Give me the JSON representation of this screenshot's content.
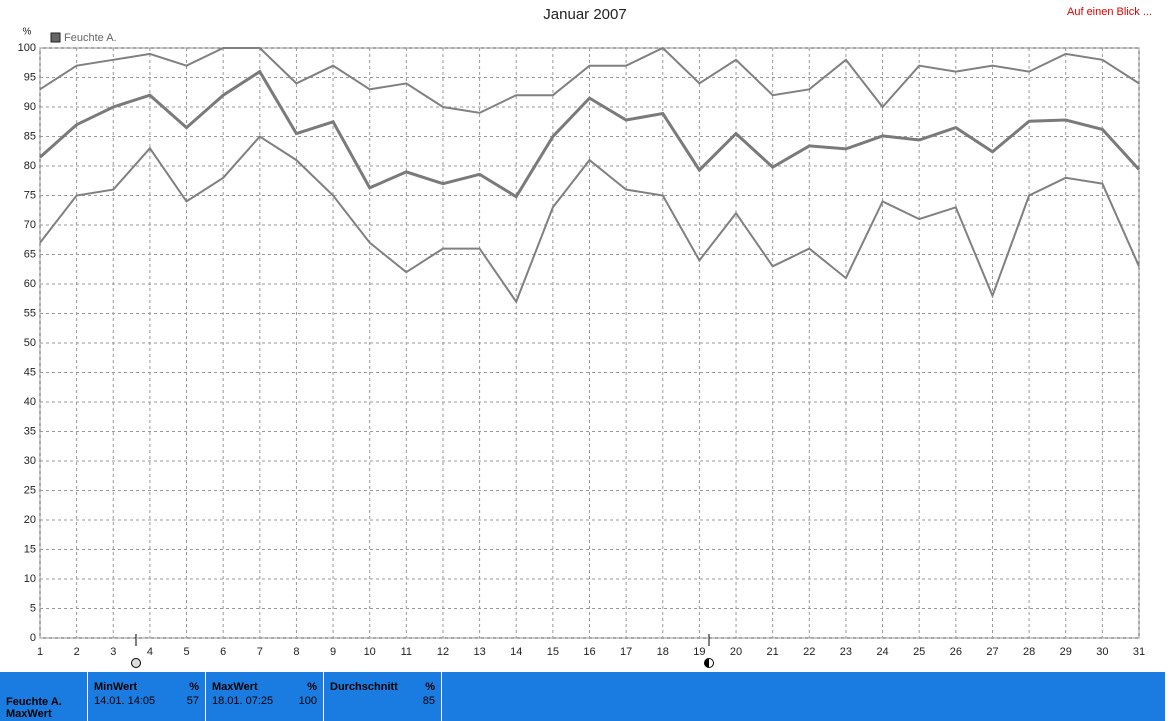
{
  "chart_data": {
    "type": "line",
    "title": "Januar 2007",
    "y_unit": "%",
    "legend": "Feuchte A.",
    "link": "Auf einen Blick ...",
    "x": [
      1,
      2,
      3,
      4,
      5,
      6,
      7,
      8,
      9,
      10,
      11,
      12,
      13,
      14,
      15,
      16,
      17,
      18,
      19,
      20,
      21,
      22,
      23,
      24,
      25,
      26,
      27,
      28,
      29,
      30,
      31
    ],
    "xlim": [
      1,
      31
    ],
    "xticks": [
      1,
      2,
      3,
      4,
      5,
      6,
      7,
      8,
      9,
      10,
      11,
      12,
      13,
      14,
      15,
      16,
      17,
      18,
      19,
      20,
      21,
      22,
      23,
      24,
      25,
      26,
      27,
      28,
      29,
      30,
      31
    ],
    "ylim": [
      0,
      100
    ],
    "yticks": [
      0,
      5,
      10,
      15,
      20,
      25,
      30,
      35,
      40,
      45,
      50,
      55,
      60,
      65,
      70,
      75,
      80,
      85,
      90,
      95,
      100
    ],
    "grid": true,
    "series": [
      {
        "color": "#808080",
        "values": [
          93,
          97,
          98,
          99,
          97,
          100,
          100,
          94,
          97,
          93,
          94,
          90,
          89,
          92,
          92,
          97,
          97,
          100,
          94,
          98,
          92,
          93,
          98,
          90,
          97,
          96,
          97,
          96,
          99,
          98,
          94
        ]
      },
      {
        "color": "#7a7a7a",
        "values": [
          81.5,
          87,
          90,
          92,
          86.5,
          92,
          96,
          85.5,
          87.5,
          76.3,
          79,
          77,
          78.6,
          74.8,
          85,
          91.5,
          87.8,
          88.9,
          79.3,
          85.5,
          79.8,
          83.4,
          82.9,
          85.1,
          84.4,
          86.5,
          82.4,
          87.6,
          87.8,
          86.2,
          79.4
        ]
      },
      {
        "color": "#808080",
        "values": [
          67,
          75,
          76,
          83,
          74,
          78,
          85,
          81,
          75,
          67,
          62,
          66,
          66,
          57,
          73,
          81,
          76,
          75,
          64,
          72,
          63,
          66,
          61,
          74,
          71,
          73,
          58,
          75,
          78,
          77,
          63
        ]
      }
    ]
  },
  "panel": {
    "name": "Feuchte A.",
    "name2": "MaxWert",
    "stats": [
      {
        "label": "MinWert",
        "unit": "%",
        "time": "14.01.  14:05",
        "value": 57
      },
      {
        "label": "MaxWert",
        "unit": "%",
        "time": "18.01.  07:25",
        "value": 100
      },
      {
        "label": "Durchschnitt",
        "unit": "%",
        "value": 85
      }
    ]
  }
}
